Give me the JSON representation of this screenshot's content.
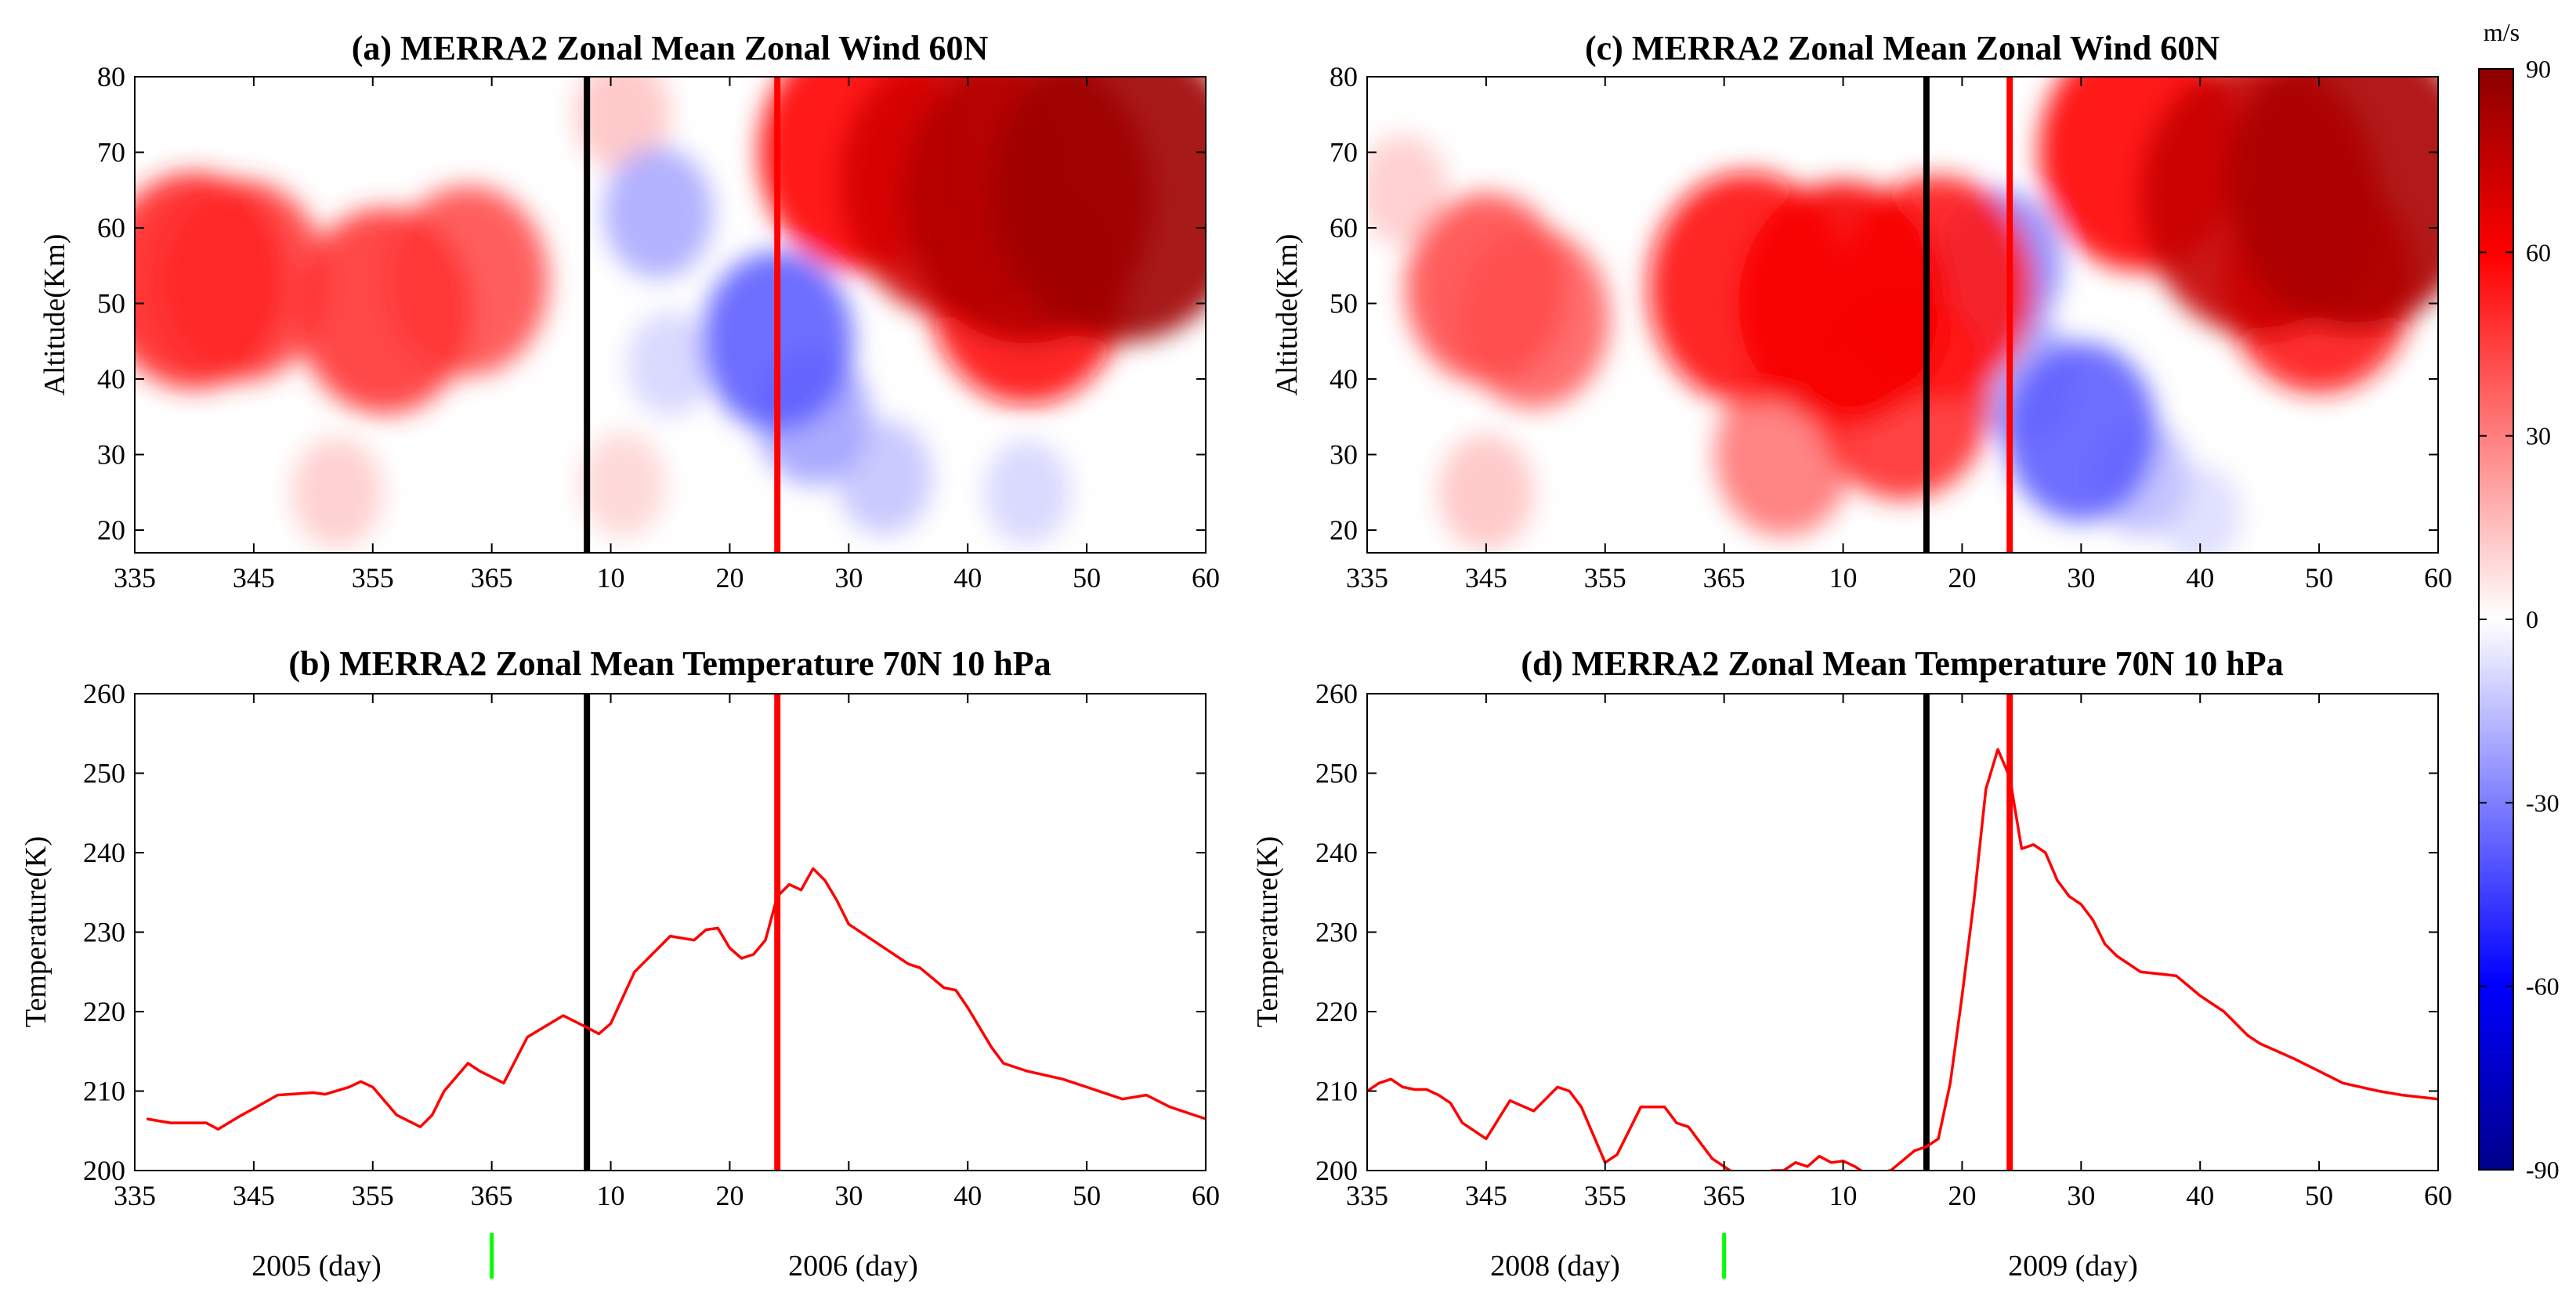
{
  "chart_data": [
    {
      "panel": "a",
      "type": "heatmap",
      "title": "(a) MERRA2 Zonal Mean Zonal Wind 60N",
      "ylabel": "Altitude(Km)",
      "ylim": [
        17,
        80
      ],
      "yticks": [
        "20",
        "30",
        "40",
        "50",
        "60",
        "70",
        "80"
      ],
      "xticks": [
        "335",
        "345",
        "355",
        "365",
        "10",
        "20",
        "30",
        "40",
        "50",
        "60"
      ],
      "vlines": [
        {
          "day": 8,
          "color": "#000000"
        },
        {
          "day": 24,
          "color": "#ff0000"
        }
      ],
      "wind_features": [
        {
          "day_pos": 340,
          "alt": 53,
          "speed": 52
        },
        {
          "day_pos": 344,
          "alt": 53,
          "speed": 46
        },
        {
          "day_pos": 356,
          "alt": 49,
          "speed": 48
        },
        {
          "day_pos": 363,
          "alt": 53,
          "speed": 42
        },
        {
          "day_pos": 352,
          "alt": 25,
          "speed": 12
        },
        {
          "day_pos": 376,
          "alt": 26,
          "speed": 10
        },
        {
          "day_pos": 376,
          "alt": 75,
          "speed": 14
        },
        {
          "day_pos": 379,
          "alt": 62,
          "speed": -20
        },
        {
          "day_pos": 380,
          "alt": 42,
          "speed": -10
        },
        {
          "day_pos": 389,
          "alt": 45,
          "speed": -38
        },
        {
          "day_pos": 392,
          "alt": 35,
          "speed": -22
        },
        {
          "day_pos": 398,
          "alt": 27,
          "speed": -14
        },
        {
          "day_pos": 410,
          "alt": 25,
          "speed": -10
        },
        {
          "day_pos": 410,
          "alt": 64,
          "speed": 80
        },
        {
          "day_pos": 418,
          "alt": 65,
          "speed": 85
        },
        {
          "day_pos": 404,
          "alt": 66,
          "speed": 72
        },
        {
          "day_pos": 396,
          "alt": 70,
          "speed": 60
        },
        {
          "day_pos": 410,
          "alt": 52,
          "speed": 58
        }
      ]
    },
    {
      "panel": "c",
      "type": "heatmap",
      "title": "(c) MERRA2 Zonal Mean Zonal Wind 60N",
      "ylabel": "Altitude(Km)",
      "ylim": [
        17,
        80
      ],
      "yticks": [
        "20",
        "30",
        "40",
        "50",
        "60",
        "70",
        "80"
      ],
      "xticks": [
        "335",
        "345",
        "355",
        "365",
        "10",
        "20",
        "30",
        "40",
        "50",
        "60"
      ],
      "vlines": [
        {
          "day": 17,
          "color": "#000000"
        },
        {
          "day": 24,
          "color": "#ff0000"
        }
      ],
      "wind_features": [
        {
          "day_pos": 345,
          "alt": 52,
          "speed": 42
        },
        {
          "day_pos": 349,
          "alt": 48,
          "speed": 38
        },
        {
          "day_pos": 375,
          "alt": 50,
          "speed": 62
        },
        {
          "day_pos": 367,
          "alt": 52,
          "speed": 58
        },
        {
          "day_pos": 380,
          "alt": 38,
          "speed": 50
        },
        {
          "day_pos": 383,
          "alt": 52,
          "speed": 55
        },
        {
          "day_pos": 370,
          "alt": 30,
          "speed": 32
        },
        {
          "day_pos": 345,
          "alt": 25,
          "speed": 14
        },
        {
          "day_pos": 338,
          "alt": 65,
          "speed": 12
        },
        {
          "day_pos": 388,
          "alt": 55,
          "speed": -28
        },
        {
          "day_pos": 390,
          "alt": 40,
          "speed": -20
        },
        {
          "day_pos": 395,
          "alt": 33,
          "speed": -38
        },
        {
          "day_pos": 400,
          "alt": 27,
          "speed": -15
        },
        {
          "day_pos": 405,
          "alt": 22,
          "speed": -8
        },
        {
          "day_pos": 418,
          "alt": 66,
          "speed": 82
        },
        {
          "day_pos": 410,
          "alt": 64,
          "speed": 75
        },
        {
          "day_pos": 400,
          "alt": 70,
          "speed": 60
        },
        {
          "day_pos": 415,
          "alt": 53,
          "speed": 55
        }
      ]
    },
    {
      "panel": "b",
      "type": "line",
      "title": "(b) MERRA2 Zonal Mean Temperature 70N 10 hPa",
      "ylabel": "Temperature(K)",
      "ylim": [
        200,
        260
      ],
      "yticks": [
        "200",
        "210",
        "220",
        "230",
        "240",
        "250",
        "260"
      ],
      "xticks": [
        "335",
        "345",
        "355",
        "365",
        "10",
        "20",
        "30",
        "40",
        "50",
        "60"
      ],
      "year_labels": [
        "2005 (day)",
        "2006 (day)"
      ],
      "vlines": [
        {
          "day": 8,
          "color": "#000000"
        },
        {
          "day": 24,
          "color": "#ff0000"
        }
      ],
      "green_tick_day": 365,
      "series": [
        {
          "name": "T",
          "color": "#ff0000",
          "x": [
            336,
            338,
            341,
            342,
            344,
            345,
            347,
            350,
            351,
            353,
            354,
            355,
            357,
            359,
            360,
            361,
            363,
            364,
            366,
            368,
            371,
            373,
            374,
            375,
            377,
            380,
            382,
            383,
            384,
            385,
            386,
            387,
            388,
            389,
            390,
            391,
            392,
            393,
            394,
            395,
            398,
            400,
            401,
            403,
            404,
            405,
            406,
            407,
            408,
            410,
            413,
            415,
            418,
            420,
            422,
            424,
            425
          ],
          "y": [
            206.5,
            206,
            206,
            205.2,
            207,
            207.8,
            209.5,
            209.8,
            209.6,
            210.5,
            211.2,
            210.5,
            207,
            205.5,
            207,
            210,
            213.5,
            212.5,
            211,
            216.8,
            219.5,
            218,
            217.2,
            218.5,
            225,
            229.5,
            229,
            230.3,
            230.5,
            228,
            226.7,
            227.2,
            229,
            234.5,
            236,
            235.3,
            238,
            236.5,
            234,
            231,
            228,
            226,
            225.5,
            223,
            222.7,
            220.5,
            218,
            215.5,
            213.5,
            212.5,
            211.5,
            210.5,
            209,
            209.5,
            208,
            207,
            206.5
          ]
        }
      ]
    },
    {
      "panel": "d",
      "type": "line",
      "title": "(d) MERRA2 Zonal Mean Temperature 70N 10 hPa",
      "ylabel": "Temperature(K)",
      "ylim": [
        200,
        260
      ],
      "yticks": [
        "200",
        "210",
        "220",
        "230",
        "240",
        "250",
        "260"
      ],
      "xticks": [
        "335",
        "345",
        "355",
        "365",
        "10",
        "20",
        "30",
        "40",
        "50",
        "60"
      ],
      "year_labels": [
        "2008 (day)",
        "2009 (day)"
      ],
      "vlines": [
        {
          "day": 17,
          "color": "#000000"
        },
        {
          "day": 24,
          "color": "#ff0000"
        }
      ],
      "green_tick_day": 365,
      "series": [
        {
          "name": "T",
          "color": "#ff0000",
          "x": [
            335,
            336,
            337,
            338,
            339,
            340,
            341,
            342,
            343,
            345,
            347,
            349,
            350,
            351,
            352,
            353,
            355,
            356,
            357,
            358,
            360,
            361,
            362,
            364,
            366,
            368,
            369,
            370,
            371,
            372,
            373,
            374,
            375,
            376,
            377,
            379,
            381,
            382,
            383,
            384,
            385,
            386,
            387,
            388,
            389,
            390,
            391,
            392,
            393,
            394,
            395,
            396,
            397,
            398,
            400,
            403,
            405,
            407,
            409,
            410,
            413,
            415,
            417,
            420,
            422,
            425
          ],
          "y": [
            210,
            211,
            211.5,
            210.5,
            210.2,
            210.2,
            209.5,
            208.5,
            206,
            204,
            208.8,
            207.5,
            209,
            210.5,
            210,
            208,
            201,
            202,
            205,
            208,
            208,
            206,
            205.5,
            201.5,
            199.5,
            199.2,
            200,
            200,
            201,
            200.5,
            201.8,
            201,
            201.2,
            200.5,
            199.5,
            200,
            202.5,
            203,
            204,
            211,
            222,
            234,
            248,
            253,
            249.5,
            240.5,
            241,
            240,
            236.5,
            234.5,
            233.5,
            231.5,
            228.5,
            227,
            225,
            224.5,
            222,
            220,
            217,
            216,
            214,
            212.5,
            211,
            210,
            209.5,
            209
          ]
        }
      ]
    }
  ],
  "colorbar": {
    "unit": "m/s",
    "range": [
      -90,
      90
    ],
    "ticks": [
      "90",
      "60",
      "30",
      "0",
      "-30",
      "-60",
      "-90"
    ],
    "colors": [
      "#00008b",
      "#0000ff",
      "#ffffff",
      "#ff0000",
      "#8b0000"
    ]
  },
  "colors": {
    "green_tick": "#00ff00",
    "vline_black": "#000000",
    "vline_red": "#ff0000"
  }
}
